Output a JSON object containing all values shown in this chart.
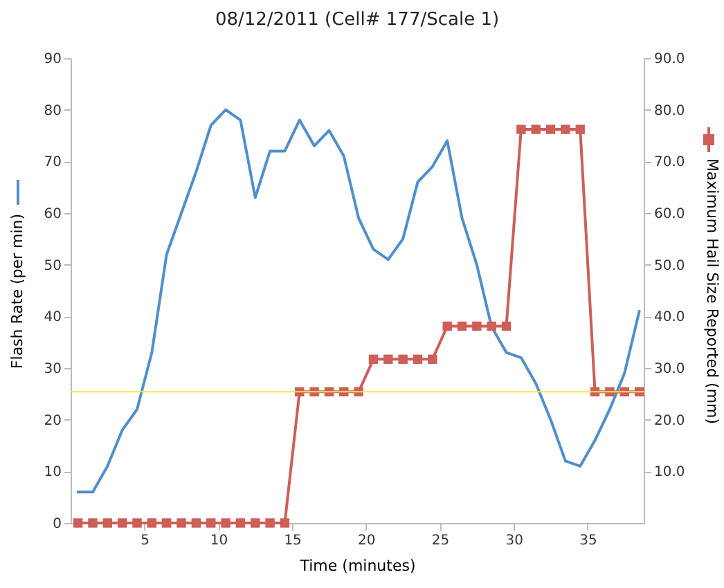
{
  "chart_data": {
    "type": "line",
    "title": "08/12/2011 (Cell# 177/Scale 1)",
    "xlabel": "Time (minutes)",
    "ylabel": "Flash Rate (per min)",
    "y2label": "Maximum Hail Size Reported (mm)",
    "x": [
      0.5,
      1.5,
      2.5,
      3.5,
      4.5,
      5.5,
      6.5,
      7.5,
      8.5,
      9.5,
      10.5,
      11.5,
      12.5,
      13.5,
      14.5,
      15.5,
      16.5,
      17.5,
      18.5,
      19.5,
      20.5,
      21.5,
      22.5,
      23.5,
      24.5,
      25.5,
      26.5,
      27.5,
      28.5,
      29.5,
      30.5,
      31.5,
      32.5,
      33.5,
      34.5,
      35.5,
      36.5,
      37.5,
      38.5
    ],
    "series": [
      {
        "color": "#4f8fcc",
        "line_style": "solid",
        "marker": "none",
        "values": [
          6,
          6,
          11,
          18,
          22,
          33,
          52,
          60,
          68,
          77,
          80,
          78,
          63,
          72,
          72,
          78,
          73,
          76,
          71,
          59,
          53,
          51,
          55,
          66,
          69,
          74,
          59,
          50,
          38,
          33,
          32,
          27,
          20,
          12,
          11,
          16,
          22,
          29,
          41
        ]
      },
      {
        "color": "#cc5f57",
        "axis": "y2",
        "line_style": "solid",
        "marker": "square",
        "values": [
          0,
          0,
          0,
          0,
          0,
          0,
          0,
          0,
          0,
          0,
          0,
          0,
          0,
          0,
          0,
          25.4,
          25.4,
          25.4,
          25.4,
          25.4,
          31.7,
          31.7,
          31.7,
          31.7,
          31.7,
          38.1,
          38.1,
          38.1,
          38.1,
          38.1,
          76.2,
          76.2,
          76.2,
          76.2,
          76.2,
          25.4,
          25.4,
          25.4,
          25.4
        ]
      }
    ],
    "xlim": [
      0,
      38.8
    ],
    "xticks": [
      5,
      10,
      15,
      20,
      25,
      30,
      35
    ],
    "ylim": [
      0,
      90
    ],
    "yticks": [
      0,
      10,
      20,
      30,
      40,
      50,
      60,
      70,
      80,
      90
    ],
    "y2lim": [
      0,
      90
    ],
    "y2ticks": [
      {
        "value": 10,
        "label": "10.0"
      },
      {
        "value": 20,
        "label": "20.0"
      },
      {
        "value": 30,
        "label": "30.0"
      },
      {
        "value": 40,
        "label": "40.0"
      },
      {
        "value": 50,
        "label": "50.0"
      },
      {
        "value": 60,
        "label": "60.0"
      },
      {
        "value": 70,
        "label": "70.0"
      },
      {
        "value": 80,
        "label": "80.0"
      },
      {
        "value": 90,
        "label": "90.0"
      }
    ],
    "ref_lines": [
      {
        "axis": "y2",
        "value": 25.4,
        "color": "#f2e84a"
      }
    ],
    "grid": false
  }
}
